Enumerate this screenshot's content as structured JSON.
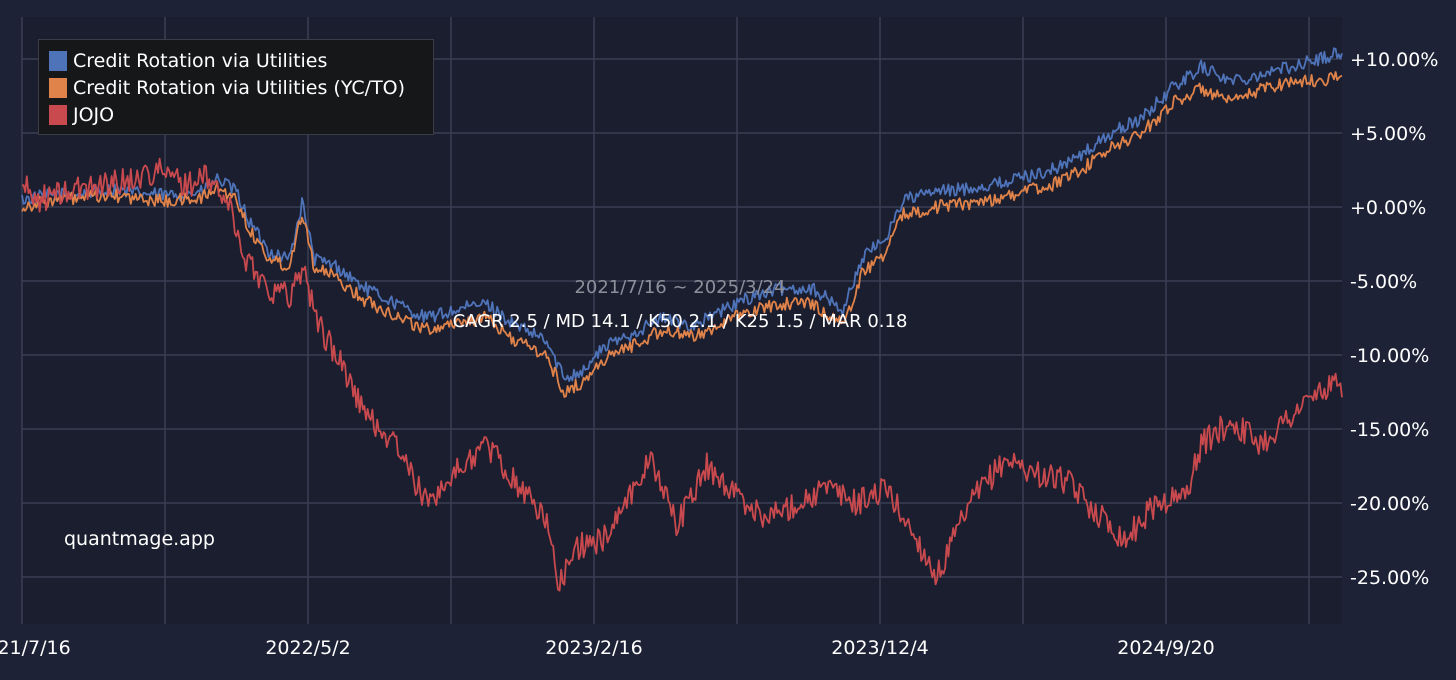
{
  "chart_data": {
    "type": "line",
    "title": "",
    "xlabel": "",
    "ylabel": "",
    "x_tick_labels": [
      "2021/7/16",
      "2022/5/2",
      "2023/2/16",
      "2023/12/4",
      "2024/9/20"
    ],
    "y_tick_labels": [
      "+10.00%",
      "+5.00%",
      "+0.00%",
      "-5.00%",
      "-10.00%",
      "-15.00%",
      "-20.00%",
      "-25.00%"
    ],
    "y_ticks": [
      10,
      5,
      0,
      -5,
      -10,
      -15,
      -20,
      -25
    ],
    "ylim": [
      -28,
      12
    ],
    "x_range": [
      "2021-07-16",
      "2025-03-24"
    ],
    "grid": true,
    "legend_position": "top-left",
    "background_color": "#1e2236",
    "grid_color": "#3a3f55",
    "series": [
      {
        "name": "Credit Rotation via Utilities",
        "color": "#4e73b9",
        "points": [
          [
            "2021-07-16",
            0.5
          ],
          [
            "2021-08-15",
            0.8
          ],
          [
            "2021-09-15",
            0.9
          ],
          [
            "2021-10-15",
            1.2
          ],
          [
            "2021-11-15",
            0.9
          ],
          [
            "2021-12-15",
            0.8
          ],
          [
            "2022-01-15",
            1.0
          ],
          [
            "2022-02-01",
            1.9
          ],
          [
            "2022-02-20",
            1.0
          ],
          [
            "2022-03-05",
            -1.0
          ],
          [
            "2022-03-25",
            -3.0
          ],
          [
            "2022-04-15",
            -3.5
          ],
          [
            "2022-04-28",
            0.3
          ],
          [
            "2022-05-10",
            -3.5
          ],
          [
            "2022-06-01",
            -4.0
          ],
          [
            "2022-07-01",
            -5.5
          ],
          [
            "2022-08-01",
            -6.5
          ],
          [
            "2022-09-01",
            -7.5
          ],
          [
            "2022-10-01",
            -7.0
          ],
          [
            "2022-11-01",
            -6.5
          ],
          [
            "2022-12-01",
            -8.0
          ],
          [
            "2023-01-01",
            -9.0
          ],
          [
            "2023-01-20",
            -11.5
          ],
          [
            "2023-02-10",
            -11.0
          ],
          [
            "2023-03-01",
            -9.5
          ],
          [
            "2023-04-01",
            -8.5
          ],
          [
            "2023-05-01",
            -7.5
          ],
          [
            "2023-06-01",
            -8.0
          ],
          [
            "2023-07-01",
            -7.0
          ],
          [
            "2023-08-01",
            -6.0
          ],
          [
            "2023-09-01",
            -5.5
          ],
          [
            "2023-10-01",
            -5.5
          ],
          [
            "2023-11-01",
            -7.0
          ],
          [
            "2023-11-20",
            -3.5
          ],
          [
            "2023-12-15",
            -2.0
          ],
          [
            "2024-01-01",
            0.5
          ],
          [
            "2024-02-01",
            1.0
          ],
          [
            "2024-03-01",
            1.2
          ],
          [
            "2024-04-01",
            1.5
          ],
          [
            "2024-05-01",
            2.0
          ],
          [
            "2024-06-01",
            2.5
          ],
          [
            "2024-07-01",
            3.5
          ],
          [
            "2024-08-01",
            5.0
          ],
          [
            "2024-09-01",
            6.0
          ],
          [
            "2024-10-01",
            8.0
          ],
          [
            "2024-11-01",
            9.5
          ],
          [
            "2024-12-01",
            8.5
          ],
          [
            "2025-01-01",
            9.0
          ],
          [
            "2025-02-01",
            9.5
          ],
          [
            "2025-03-01",
            10.0
          ],
          [
            "2025-03-24",
            10.5
          ]
        ]
      },
      {
        "name": "Credit Rotation via Utilities (YC/TO)",
        "color": "#e0834a",
        "points": [
          [
            "2021-07-16",
            0.0
          ],
          [
            "2021-08-15",
            0.5
          ],
          [
            "2021-09-15",
            0.6
          ],
          [
            "2021-10-15",
            0.8
          ],
          [
            "2021-11-15",
            0.5
          ],
          [
            "2021-12-15",
            0.4
          ],
          [
            "2022-01-15",
            0.6
          ],
          [
            "2022-02-01",
            1.3
          ],
          [
            "2022-02-20",
            0.5
          ],
          [
            "2022-03-05",
            -1.5
          ],
          [
            "2022-03-25",
            -3.5
          ],
          [
            "2022-04-15",
            -4.0
          ],
          [
            "2022-04-28",
            -0.2
          ],
          [
            "2022-05-10",
            -4.0
          ],
          [
            "2022-06-01",
            -4.8
          ],
          [
            "2022-07-01",
            -6.3
          ],
          [
            "2022-08-01",
            -7.3
          ],
          [
            "2022-09-01",
            -8.3
          ],
          [
            "2022-10-01",
            -7.8
          ],
          [
            "2022-11-01",
            -7.5
          ],
          [
            "2022-12-01",
            -9.0
          ],
          [
            "2023-01-01",
            -10.0
          ],
          [
            "2023-01-20",
            -12.5
          ],
          [
            "2023-02-10",
            -11.8
          ],
          [
            "2023-03-01",
            -10.3
          ],
          [
            "2023-04-01",
            -9.3
          ],
          [
            "2023-05-01",
            -8.3
          ],
          [
            "2023-06-01",
            -8.8
          ],
          [
            "2023-07-01",
            -7.8
          ],
          [
            "2023-08-01",
            -7.0
          ],
          [
            "2023-09-01",
            -6.5
          ],
          [
            "2023-10-01",
            -6.5
          ],
          [
            "2023-11-01",
            -8.0
          ],
          [
            "2023-11-20",
            -4.5
          ],
          [
            "2023-12-15",
            -3.0
          ],
          [
            "2024-01-01",
            -0.5
          ],
          [
            "2024-02-01",
            0.0
          ],
          [
            "2024-03-01",
            0.2
          ],
          [
            "2024-04-01",
            0.5
          ],
          [
            "2024-05-01",
            1.0
          ],
          [
            "2024-06-01",
            1.5
          ],
          [
            "2024-07-01",
            2.5
          ],
          [
            "2024-08-01",
            4.0
          ],
          [
            "2024-09-01",
            5.0
          ],
          [
            "2024-10-01",
            7.0
          ],
          [
            "2024-11-01",
            8.0
          ],
          [
            "2024-12-01",
            7.0
          ],
          [
            "2025-01-01",
            8.0
          ],
          [
            "2025-02-01",
            8.5
          ],
          [
            "2025-03-01",
            8.5
          ],
          [
            "2025-03-24",
            9.0
          ]
        ]
      },
      {
        "name": "JOJO",
        "color": "#c94a4e",
        "points": [
          [
            "2021-07-16",
            1.5
          ],
          [
            "2021-08-01",
            0.5
          ],
          [
            "2021-09-01",
            1.0
          ],
          [
            "2021-10-01",
            1.5
          ],
          [
            "2021-11-01",
            1.8
          ],
          [
            "2021-12-01",
            2.5
          ],
          [
            "2022-01-01",
            1.5
          ],
          [
            "2022-01-20",
            2.0
          ],
          [
            "2022-02-10",
            0.5
          ],
          [
            "2022-03-01",
            -3.5
          ],
          [
            "2022-03-25",
            -5.5
          ],
          [
            "2022-04-15",
            -6.0
          ],
          [
            "2022-04-28",
            -4.0
          ],
          [
            "2022-05-15",
            -8.0
          ],
          [
            "2022-06-10",
            -11.0
          ],
          [
            "2022-07-01",
            -14.0
          ],
          [
            "2022-08-01",
            -16.0
          ],
          [
            "2022-09-01",
            -20.0
          ],
          [
            "2022-10-01",
            -18.0
          ],
          [
            "2022-11-01",
            -16.0
          ],
          [
            "2022-12-01",
            -18.5
          ],
          [
            "2023-01-01",
            -21.0
          ],
          [
            "2023-01-15",
            -25.5
          ],
          [
            "2023-02-01",
            -23.0
          ],
          [
            "2023-03-01",
            -22.5
          ],
          [
            "2023-04-01",
            -19.0
          ],
          [
            "2023-04-20",
            -17.0
          ],
          [
            "2023-05-15",
            -21.5
          ],
          [
            "2023-06-15",
            -17.5
          ],
          [
            "2023-07-15",
            -19.5
          ],
          [
            "2023-08-15",
            -21.0
          ],
          [
            "2023-09-15",
            -20.0
          ],
          [
            "2023-10-15",
            -19.0
          ],
          [
            "2023-11-15",
            -20.0
          ],
          [
            "2023-12-15",
            -19.0
          ],
          [
            "2024-01-15",
            -22.5
          ],
          [
            "2024-02-05",
            -25.0
          ],
          [
            "2024-02-25",
            -22.0
          ],
          [
            "2024-03-15",
            -19.5
          ],
          [
            "2024-04-15",
            -17.0
          ],
          [
            "2024-05-15",
            -18.0
          ],
          [
            "2024-06-15",
            -18.5
          ],
          [
            "2024-07-15",
            -20.5
          ],
          [
            "2024-08-15",
            -22.5
          ],
          [
            "2024-09-15",
            -20.0
          ],
          [
            "2024-10-15",
            -19.5
          ],
          [
            "2024-11-01",
            -16.0
          ],
          [
            "2024-12-01",
            -14.5
          ],
          [
            "2025-01-01",
            -16.0
          ],
          [
            "2025-02-01",
            -14.0
          ],
          [
            "2025-03-01",
            -12.5
          ],
          [
            "2025-03-24",
            -12.0
          ]
        ]
      }
    ]
  },
  "annotations": {
    "period": "2021/7/16 ~ 2025/3/24",
    "stats": "CAGR 2.5 / MD 14.1 / K50 2.1 / K25 1.5 / MAR 0.18",
    "watermark": "quantmage.app"
  }
}
